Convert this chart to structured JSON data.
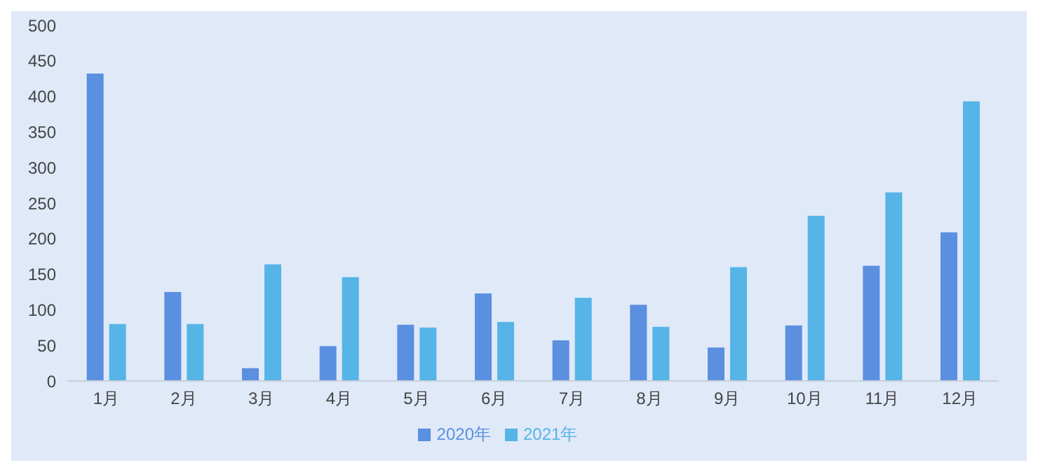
{
  "chart_data": {
    "type": "bar",
    "categories": [
      "1月",
      "2月",
      "3月",
      "4月",
      "5月",
      "6月",
      "7月",
      "8月",
      "9月",
      "10月",
      "11月",
      "12月"
    ],
    "series": [
      {
        "name": "2020年",
        "color": "#5b8fe0",
        "values": [
          432,
          125,
          18,
          49,
          79,
          123,
          57,
          107,
          47,
          78,
          162,
          209
        ]
      },
      {
        "name": "2021年",
        "color": "#56b4e6",
        "values": [
          80,
          80,
          164,
          146,
          75,
          83,
          117,
          76,
          160,
          232,
          265,
          393
        ]
      }
    ],
    "ylim": [
      0,
      500
    ],
    "yticks": [
      0,
      50,
      100,
      150,
      200,
      250,
      300,
      350,
      400,
      450,
      500
    ],
    "grid": false,
    "legend": "bottom"
  }
}
